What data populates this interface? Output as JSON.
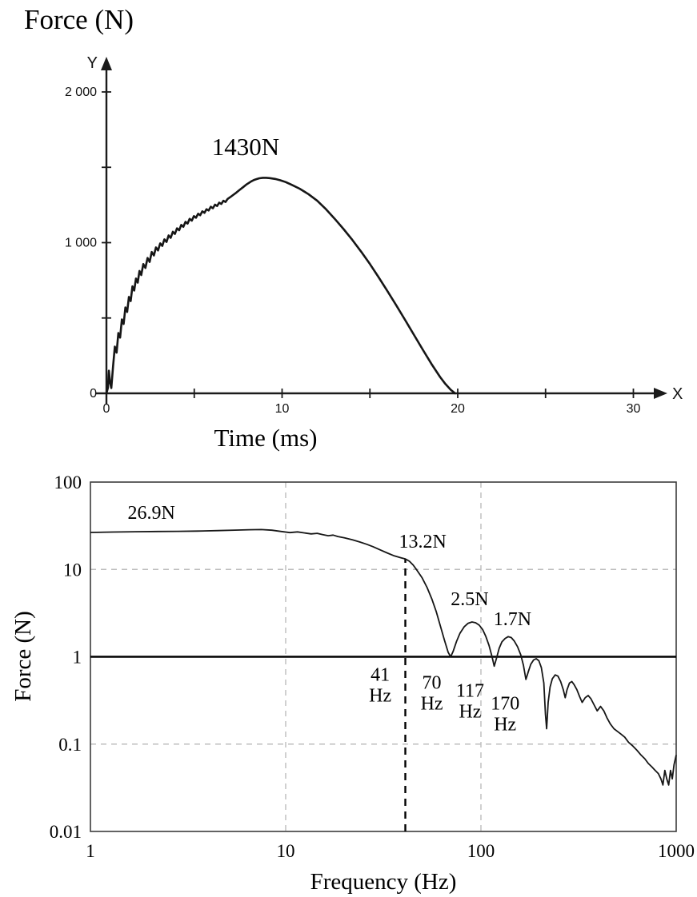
{
  "colors": {
    "curve": "#161616",
    "grid": "#bdbdbd",
    "text": "#000000"
  },
  "chart_data": [
    {
      "type": "line",
      "name": "impact-force-time-history",
      "title": "Force (N)",
      "xlabel": "Time (ms)",
      "ylabel": "",
      "axis_letters": {
        "x": "X",
        "y": "Y"
      },
      "xlim": [
        0,
        31
      ],
      "ylim": [
        0,
        2150
      ],
      "grid": false,
      "xticks": [
        {
          "v": 0,
          "label": "0"
        },
        {
          "v": 5,
          "label": ""
        },
        {
          "v": 10,
          "label": "10"
        },
        {
          "v": 15,
          "label": ""
        },
        {
          "v": 20,
          "label": "20"
        },
        {
          "v": 25,
          "label": ""
        },
        {
          "v": 30,
          "label": "30"
        }
      ],
      "yticks": [
        {
          "v": 0,
          "label": "0"
        },
        {
          "v": 500,
          "label": ""
        },
        {
          "v": 1000,
          "label": "1 000"
        },
        {
          "v": 1500,
          "label": ""
        },
        {
          "v": 2000,
          "label": "2 000"
        }
      ],
      "annotations": [
        {
          "text": "1430N",
          "x": 6.0,
          "y": 1580,
          "anchor": "start"
        }
      ],
      "peak_value_n": 1430,
      "pulse_duration_ms": 19.85,
      "points": [
        [
          0,
          0
        ],
        [
          0.08,
          35
        ],
        [
          0.14,
          150
        ],
        [
          0.2,
          75
        ],
        [
          0.28,
          35
        ],
        [
          0.38,
          180
        ],
        [
          0.48,
          310
        ],
        [
          0.58,
          270
        ],
        [
          0.68,
          400
        ],
        [
          0.78,
          370
        ],
        [
          0.88,
          490
        ],
        [
          0.98,
          460
        ],
        [
          1.08,
          570
        ],
        [
          1.18,
          540
        ],
        [
          1.28,
          640
        ],
        [
          1.38,
          612
        ],
        [
          1.48,
          710
        ],
        [
          1.58,
          682
        ],
        [
          1.68,
          762
        ],
        [
          1.78,
          735
        ],
        [
          1.88,
          812
        ],
        [
          1.98,
          785
        ],
        [
          2.1,
          858
        ],
        [
          2.22,
          832
        ],
        [
          2.34,
          898
        ],
        [
          2.46,
          872
        ],
        [
          2.58,
          938
        ],
        [
          2.7,
          915
        ],
        [
          2.82,
          968
        ],
        [
          2.94,
          948
        ],
        [
          3.06,
          995
        ],
        [
          3.18,
          978
        ],
        [
          3.3,
          1022
        ],
        [
          3.42,
          1005
        ],
        [
          3.54,
          1048
        ],
        [
          3.66,
          1032
        ],
        [
          3.78,
          1072
        ],
        [
          3.9,
          1058
        ],
        [
          4.02,
          1095
        ],
        [
          4.14,
          1082
        ],
        [
          4.26,
          1118
        ],
        [
          4.38,
          1105
        ],
        [
          4.5,
          1138
        ],
        [
          4.62,
          1126
        ],
        [
          4.74,
          1158
        ],
        [
          4.86,
          1146
        ],
        [
          4.98,
          1176
        ],
        [
          5.1,
          1165
        ],
        [
          5.22,
          1192
        ],
        [
          5.34,
          1182
        ],
        [
          5.46,
          1208
        ],
        [
          5.58,
          1198
        ],
        [
          5.7,
          1222
        ],
        [
          5.82,
          1213
        ],
        [
          5.94,
          1238
        ],
        [
          6.06,
          1228
        ],
        [
          6.18,
          1252
        ],
        [
          6.3,
          1243
        ],
        [
          6.42,
          1265
        ],
        [
          6.54,
          1257
        ],
        [
          6.66,
          1278
        ],
        [
          6.78,
          1270
        ],
        [
          6.9,
          1290
        ],
        [
          7.05,
          1302
        ],
        [
          7.2,
          1315
        ],
        [
          7.35,
          1328
        ],
        [
          7.5,
          1342
        ],
        [
          7.65,
          1356
        ],
        [
          7.8,
          1370
        ],
        [
          7.95,
          1384
        ],
        [
          8.1,
          1396
        ],
        [
          8.25,
          1407
        ],
        [
          8.4,
          1416
        ],
        [
          8.55,
          1422
        ],
        [
          8.7,
          1427
        ],
        [
          8.9,
          1430
        ],
        [
          9.1,
          1430
        ],
        [
          9.3,
          1428
        ],
        [
          9.6,
          1423
        ],
        [
          9.9,
          1414
        ],
        [
          10.2,
          1402
        ],
        [
          10.5,
          1386
        ],
        [
          11.0,
          1358
        ],
        [
          11.5,
          1322
        ],
        [
          12.0,
          1278
        ],
        [
          12.5,
          1222
        ],
        [
          13.0,
          1158
        ],
        [
          13.5,
          1090
        ],
        [
          14.0,
          1018
        ],
        [
          14.5,
          940
        ],
        [
          15.0,
          858
        ],
        [
          15.5,
          770
        ],
        [
          16.0,
          678
        ],
        [
          16.5,
          584
        ],
        [
          17.0,
          488
        ],
        [
          17.5,
          390
        ],
        [
          18.0,
          292
        ],
        [
          18.5,
          196
        ],
        [
          19.0,
          108
        ],
        [
          19.3,
          62
        ],
        [
          19.6,
          24
        ],
        [
          19.85,
          0
        ]
      ]
    },
    {
      "type": "line",
      "scale": "log-log",
      "name": "force-frequency-spectrum",
      "title": "",
      "xlabel": "Frequency  (Hz)",
      "ylabel": "Force (N)",
      "xlim": [
        1,
        1000
      ],
      "ylim": [
        0.01,
        100
      ],
      "xticks": [
        {
          "v": 1,
          "label": "1"
        },
        {
          "v": 10,
          "label": "10"
        },
        {
          "v": 100,
          "label": "100"
        },
        {
          "v": 1000,
          "label": "1000"
        }
      ],
      "yticks": [
        {
          "v": 100,
          "label": "100"
        },
        {
          "v": 10,
          "label": "10"
        },
        {
          "v": 1,
          "label": "1"
        },
        {
          "v": 0.1,
          "label": "0.1"
        },
        {
          "v": 0.01,
          "label": "0.01"
        }
      ],
      "grid_dashed_x": [
        10,
        100
      ],
      "grid_dashed_y": [
        10,
        0.1
      ],
      "solid_line_y": 1,
      "marker_line": {
        "x": 41,
        "to_y": 13.2
      },
      "annotations": [
        {
          "text": "26.9N",
          "x": 1.55,
          "y": 38,
          "anchor": "start"
        },
        {
          "text": "13.2N",
          "x": 38,
          "y": 17.8,
          "anchor": "start"
        },
        {
          "text": "2.5N",
          "x": 70,
          "y": 3.9,
          "anchor": "start"
        },
        {
          "text": "1.7N",
          "x": 116,
          "y": 2.3,
          "anchor": "start"
        },
        {
          "text": "41\nHz",
          "x": 30.5,
          "y": 0.53,
          "anchor": "middle"
        },
        {
          "text": "70\nHz",
          "x": 56,
          "y": 0.43,
          "anchor": "middle"
        },
        {
          "text": "117\nHz",
          "x": 88,
          "y": 0.35,
          "anchor": "middle"
        },
        {
          "text": "170\nHz",
          "x": 133,
          "y": 0.25,
          "anchor": "middle"
        }
      ],
      "key_values": {
        "plateau_force_n": 26.9,
        "force_at_41hz_n": 13.2,
        "lobe_peaks_n": [
          2.5,
          1.7
        ],
        "notch_frequencies_hz": [
          70,
          117,
          170
        ]
      },
      "points": [
        [
          1,
          26.5
        ],
        [
          1.3,
          26.8
        ],
        [
          1.7,
          27.0
        ],
        [
          2.2,
          27.2
        ],
        [
          2.8,
          27.3
        ],
        [
          3.5,
          27.5
        ],
        [
          4.5,
          27.8
        ],
        [
          5.5,
          28.2
        ],
        [
          6.5,
          28.5
        ],
        [
          7.5,
          28.6
        ],
        [
          8.5,
          28.1
        ],
        [
          9.5,
          27.2
        ],
        [
          10.5,
          26.4
        ],
        [
          11.5,
          26.9
        ],
        [
          12.5,
          26.2
        ],
        [
          13.5,
          25.5
        ],
        [
          14.5,
          25.9
        ],
        [
          15.5,
          25.0
        ],
        [
          16.5,
          24.3
        ],
        [
          17.5,
          24.7
        ],
        [
          18.5,
          23.8
        ],
        [
          20,
          23.0
        ],
        [
          22,
          21.8
        ],
        [
          24,
          20.6
        ],
        [
          26,
          19.4
        ],
        [
          28,
          18.2
        ],
        [
          30,
          17.0
        ],
        [
          33,
          15.5
        ],
        [
          36,
          14.3
        ],
        [
          39,
          13.6
        ],
        [
          41,
          13.2
        ],
        [
          43,
          12.4
        ],
        [
          45,
          11.2
        ],
        [
          47,
          9.8
        ],
        [
          50,
          8.0
        ],
        [
          53,
          6.2
        ],
        [
          56,
          4.6
        ],
        [
          59,
          3.3
        ],
        [
          62,
          2.25
        ],
        [
          65,
          1.55
        ],
        [
          68,
          1.12
        ],
        [
          70,
          1.0
        ],
        [
          72,
          1.15
        ],
        [
          75,
          1.5
        ],
        [
          78,
          1.85
        ],
        [
          82,
          2.2
        ],
        [
          86,
          2.42
        ],
        [
          90,
          2.5
        ],
        [
          94,
          2.45
        ],
        [
          98,
          2.3
        ],
        [
          102,
          2.05
        ],
        [
          106,
          1.7
        ],
        [
          110,
          1.35
        ],
        [
          114,
          1.0
        ],
        [
          117,
          0.78
        ],
        [
          120,
          0.95
        ],
        [
          124,
          1.25
        ],
        [
          128,
          1.48
        ],
        [
          133,
          1.62
        ],
        [
          138,
          1.7
        ],
        [
          143,
          1.66
        ],
        [
          148,
          1.52
        ],
        [
          154,
          1.3
        ],
        [
          160,
          1.05
        ],
        [
          165,
          0.8
        ],
        [
          170,
          0.55
        ],
        [
          175,
          0.68
        ],
        [
          180,
          0.82
        ],
        [
          186,
          0.92
        ],
        [
          192,
          0.95
        ],
        [
          198,
          0.9
        ],
        [
          204,
          0.75
        ],
        [
          210,
          0.5
        ],
        [
          214,
          0.22
        ],
        [
          217,
          0.15
        ],
        [
          221,
          0.3
        ],
        [
          226,
          0.45
        ],
        [
          232,
          0.56
        ],
        [
          240,
          0.62
        ],
        [
          248,
          0.6
        ],
        [
          256,
          0.52
        ],
        [
          264,
          0.42
        ],
        [
          270,
          0.34
        ],
        [
          276,
          0.42
        ],
        [
          284,
          0.5
        ],
        [
          292,
          0.52
        ],
        [
          300,
          0.48
        ],
        [
          310,
          0.42
        ],
        [
          320,
          0.35
        ],
        [
          330,
          0.3
        ],
        [
          342,
          0.34
        ],
        [
          354,
          0.36
        ],
        [
          366,
          0.33
        ],
        [
          380,
          0.28
        ],
        [
          394,
          0.24
        ],
        [
          410,
          0.27
        ],
        [
          426,
          0.24
        ],
        [
          442,
          0.2
        ],
        [
          460,
          0.17
        ],
        [
          480,
          0.15
        ],
        [
          500,
          0.14
        ],
        [
          522,
          0.13
        ],
        [
          545,
          0.12
        ],
        [
          570,
          0.105
        ],
        [
          600,
          0.095
        ],
        [
          630,
          0.085
        ],
        [
          660,
          0.075
        ],
        [
          690,
          0.068
        ],
        [
          720,
          0.06
        ],
        [
          750,
          0.055
        ],
        [
          780,
          0.05
        ],
        [
          810,
          0.046
        ],
        [
          835,
          0.04
        ],
        [
          855,
          0.034
        ],
        [
          875,
          0.05
        ],
        [
          895,
          0.04
        ],
        [
          915,
          0.034
        ],
        [
          935,
          0.05
        ],
        [
          955,
          0.04
        ],
        [
          975,
          0.058
        ],
        [
          1000,
          0.075
        ]
      ]
    }
  ]
}
